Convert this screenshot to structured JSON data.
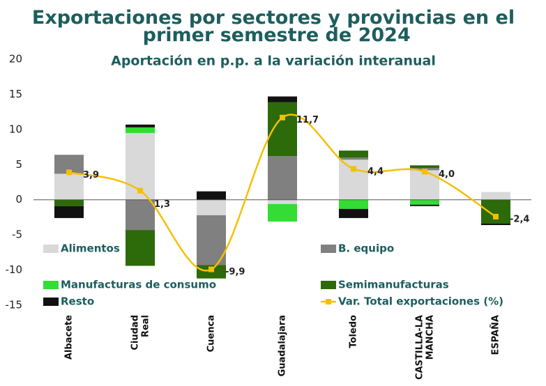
{
  "chart_data": {
    "type": "bar-line",
    "title": "Exportaciones por sectores y provincias en el primer semestre de 2024",
    "subtitle": "Aportación en p.p. a la variación interanual",
    "categories": [
      "Albacete",
      "Ciudad Real",
      "Cuenca",
      "Guadalajara",
      "Toledo",
      "CASTILLA-LA MANCHA",
      "ESPAÑA"
    ],
    "series": [
      {
        "name": "Alimentos",
        "color": "#d9d9d9",
        "values": [
          3.7,
          9.5,
          -2.2,
          -0.6,
          5.7,
          4.2,
          1.1
        ]
      },
      {
        "name": "B. equipo",
        "color": "#808080",
        "values": [
          2.7,
          -4.3,
          -7.1,
          6.2,
          0.3,
          0.3,
          0
        ]
      },
      {
        "name": "Manufacturas de consumo",
        "color": "#33dd33",
        "values": [
          0,
          0.8,
          0,
          -2.5,
          -1.3,
          -0.7,
          0
        ]
      },
      {
        "name": "Semimanufacturas",
        "color": "#2d6a0a",
        "values": [
          -0.9,
          -5.1,
          -1.9,
          7.7,
          1.0,
          0.4,
          -3.4
        ]
      },
      {
        "name": "Resto",
        "color": "#111111",
        "values": [
          -1.7,
          0.4,
          1.2,
          0.8,
          -1.3,
          -0.2,
          -0.2
        ]
      }
    ],
    "line": {
      "name": "Var. Total exportaciones (%)",
      "color": "#f5c000",
      "values": [
        3.9,
        1.3,
        -9.9,
        11.7,
        4.4,
        4.0,
        -2.4
      ],
      "value_labels": [
        "3,9",
        "1,3",
        "-9,9",
        "11,7",
        "4,4",
        "4,0",
        "-2,4"
      ]
    },
    "ylim": [
      -15,
      20
    ],
    "yticks": [
      -15,
      -10,
      -5,
      0,
      5,
      10,
      15,
      20
    ]
  }
}
